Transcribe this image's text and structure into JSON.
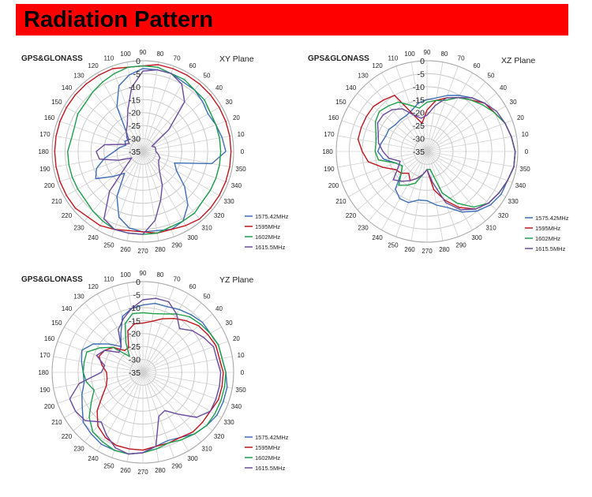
{
  "page_title": "Radiation Pattern",
  "colors": {
    "banner": "#ff0000",
    "series": [
      "#3c6db5",
      "#c0141c",
      "#1a9e4a",
      "#6a4a9c"
    ]
  },
  "chart_data": [
    {
      "type": "polar-line",
      "title": "XY Plane",
      "subtitle": "GPS&GLONASS",
      "radial_ticks": [
        "0",
        "-5",
        "-10",
        "-15",
        "-20",
        "-25",
        "-30",
        "-35"
      ],
      "radial_range": [
        -35,
        0
      ],
      "angle_step_deg": 10,
      "angle_labels": [
        "0",
        "10",
        "20",
        "30",
        "40",
        "50",
        "60",
        "70",
        "80",
        "90",
        "100",
        "110",
        "120",
        "130",
        "140",
        "150",
        "160",
        "170",
        "180",
        "190",
        "200",
        "210",
        "220",
        "230",
        "240",
        "250",
        "260",
        "270",
        "280",
        "290",
        "300",
        "310",
        "320",
        "330",
        "340",
        "350"
      ],
      "series": [
        {
          "name": "1575.42MHz",
          "r": [
            -3,
            -4,
            -5,
            -6,
            -5,
            -4,
            -4,
            -3,
            -3,
            -3,
            -5,
            -8,
            -15,
            -25,
            -28,
            -27,
            -28,
            -26,
            -24,
            -20,
            -16,
            -14,
            -20,
            -24,
            -15,
            -8,
            -5,
            -4,
            -4,
            -3,
            -4,
            -8,
            -14,
            -20,
            -22,
            -8
          ]
        },
        {
          "name": "1595MHz",
          "r": [
            -1,
            -1,
            -1,
            -1,
            -1,
            -1,
            -1,
            -1,
            -1,
            -2,
            -2,
            -1,
            -1,
            -1,
            -1,
            -1,
            -1,
            -1,
            -1,
            -1,
            -1,
            -1,
            -1,
            -2,
            -2,
            -3,
            -4,
            -4,
            -3,
            -3,
            -2,
            -1,
            -1,
            -1,
            -1,
            -1
          ]
        },
        {
          "name": "1602MHz",
          "r": [
            -5,
            -5,
            -5,
            -5,
            -4,
            -4,
            -3,
            -3,
            -2,
            -2,
            -2,
            -3,
            -4,
            -5,
            -6,
            -6,
            -7,
            -7,
            -6,
            -6,
            -6,
            -6,
            -6,
            -5,
            -4,
            -3,
            -3,
            -3,
            -3,
            -4,
            -4,
            -4,
            -5,
            -5,
            -5,
            -5
          ]
        },
        {
          "name": "1615.5MHz",
          "r": [
            -30,
            -30,
            -30,
            -31,
            -22,
            -10,
            -5,
            -3,
            -3,
            -4,
            -10,
            -18,
            -23,
            -25,
            -27,
            -29,
            -27,
            -20,
            -17,
            -18,
            -25,
            -30,
            -27,
            -15,
            -5,
            -3,
            -3,
            -3,
            -8,
            -15,
            -20,
            -25,
            -27,
            -28,
            -28,
            -29
          ]
        }
      ]
    },
    {
      "type": "polar-line",
      "title": "XZ Plane",
      "subtitle": "GPS&GLONASS",
      "radial_ticks": [
        "0",
        "-5",
        "-10",
        "-15",
        "-20",
        "-25",
        "-30",
        "-35"
      ],
      "radial_range": [
        -35,
        0
      ],
      "angle_step_deg": 10,
      "angle_labels": [
        "0",
        "10",
        "20",
        "30",
        "40",
        "50",
        "60",
        "70",
        "80",
        "90",
        "100",
        "110",
        "120",
        "130",
        "140",
        "150",
        "160",
        "170",
        "180",
        "190",
        "200",
        "210",
        "220",
        "230",
        "240",
        "250",
        "260",
        "270",
        "280",
        "290",
        "300",
        "310",
        "320",
        "330",
        "340",
        "350"
      ],
      "series": [
        {
          "name": "1575.42MHz",
          "r": [
            -1,
            -2,
            -3,
            -5,
            -6,
            -8,
            -10,
            -12,
            -14,
            -15,
            -16,
            -18,
            -19,
            -19,
            -19,
            -18,
            -18,
            -17,
            -16,
            -18,
            -22,
            -24,
            -22,
            -16,
            -14,
            -14,
            -16,
            -16,
            -14,
            -12,
            -8,
            -5,
            -3,
            -2,
            -2,
            -1
          ]
        },
        {
          "name": "1595MHz",
          "r": [
            -1,
            -2,
            -3,
            -5,
            -6,
            -9,
            -11,
            -13,
            -15,
            -19,
            -24,
            -20,
            -10,
            -9,
            -8,
            -8,
            -8,
            -8,
            -10,
            -12,
            -17,
            -21,
            -22,
            -24,
            -22,
            -24,
            -26,
            -28,
            -20,
            -15,
            -10,
            -6,
            -4,
            -3,
            -2,
            -1
          ]
        },
        {
          "name": "1602MHz",
          "r": [
            -1,
            -2,
            -3,
            -5,
            -7,
            -9,
            -11,
            -14,
            -15,
            -16,
            -18,
            -16,
            -13,
            -12,
            -11,
            -12,
            -14,
            -15,
            -15,
            -16,
            -22,
            -24,
            -22,
            -18,
            -20,
            -22,
            -26,
            -28,
            -28,
            -18,
            -12,
            -7,
            -4,
            -3,
            -2,
            -1
          ]
        },
        {
          "name": "1615.5MHz",
          "r": [
            -1,
            -2,
            -3,
            -4,
            -6,
            -8,
            -11,
            -13,
            -17,
            -21,
            -22,
            -20,
            -16,
            -14,
            -13,
            -13,
            -15,
            -16,
            -18,
            -20,
            -24,
            -22,
            -18,
            -20,
            -22,
            -24,
            -26,
            -28,
            -23,
            -14,
            -9,
            -6,
            -4,
            -3,
            -2,
            -1
          ]
        }
      ]
    },
    {
      "type": "polar-line",
      "title": "YZ Plane",
      "subtitle": "GPS&GLONASS",
      "radial_ticks": [
        "0",
        "-5",
        "-10",
        "-15",
        "-20",
        "-25",
        "-30",
        "-35"
      ],
      "radial_range": [
        -35,
        0
      ],
      "angle_step_deg": 10,
      "angle_labels": [
        "0",
        "10",
        "20",
        "30",
        "40",
        "50",
        "60",
        "70",
        "80",
        "90",
        "100",
        "110",
        "120",
        "130",
        "140",
        "150",
        "160",
        "170",
        "180",
        "190",
        "200",
        "210",
        "220",
        "230",
        "240",
        "250",
        "260",
        "270",
        "280",
        "290",
        "300",
        "310",
        "320",
        "330",
        "340",
        "350"
      ],
      "series": [
        {
          "name": "1575.42MHz",
          "r": [
            -3,
            -4,
            -4,
            -5,
            -5,
            -6,
            -7,
            -8,
            -8,
            -9,
            -10,
            -12,
            -18,
            -22,
            -18,
            -13,
            -10,
            -11,
            -12,
            -12,
            -10,
            -8,
            -5,
            -4,
            -3,
            -3,
            -3,
            -4,
            -6,
            -7,
            -6,
            -4,
            -3,
            -2,
            -2,
            -2
          ]
        },
        {
          "name": "1595MHz",
          "r": [
            -4,
            -5,
            -5,
            -6,
            -7,
            -9,
            -11,
            -13,
            -15,
            -16,
            -16,
            -18,
            -24,
            -24,
            -20,
            -18,
            -17,
            -19,
            -21,
            -21,
            -20,
            -17,
            -12,
            -8,
            -6,
            -5,
            -5,
            -5,
            -6,
            -6,
            -6,
            -5,
            -5,
            -5,
            -4,
            -4
          ]
        },
        {
          "name": "1602MHz",
          "r": [
            -3,
            -4,
            -4,
            -5,
            -6,
            -7,
            -9,
            -11,
            -12,
            -12,
            -12,
            -15,
            -22,
            -27,
            -20,
            -16,
            -12,
            -12,
            -12,
            -13,
            -15,
            -12,
            -8,
            -5,
            -4,
            -3,
            -3,
            -4,
            -5,
            -6,
            -5,
            -4,
            -3,
            -3,
            -3,
            -3
          ]
        },
        {
          "name": "1615.5MHz",
          "r": [
            -5,
            -6,
            -6,
            -8,
            -10,
            -13,
            -9,
            -6,
            -6,
            -7,
            -10,
            -13,
            -16,
            -22,
            -23,
            -18,
            -16,
            -20,
            -19,
            -10,
            -5,
            -5,
            -6,
            -10,
            -7,
            -4,
            -3,
            -4,
            -6,
            -17,
            -18,
            -14,
            -8,
            -5,
            -5,
            -5
          ]
        }
      ]
    }
  ]
}
